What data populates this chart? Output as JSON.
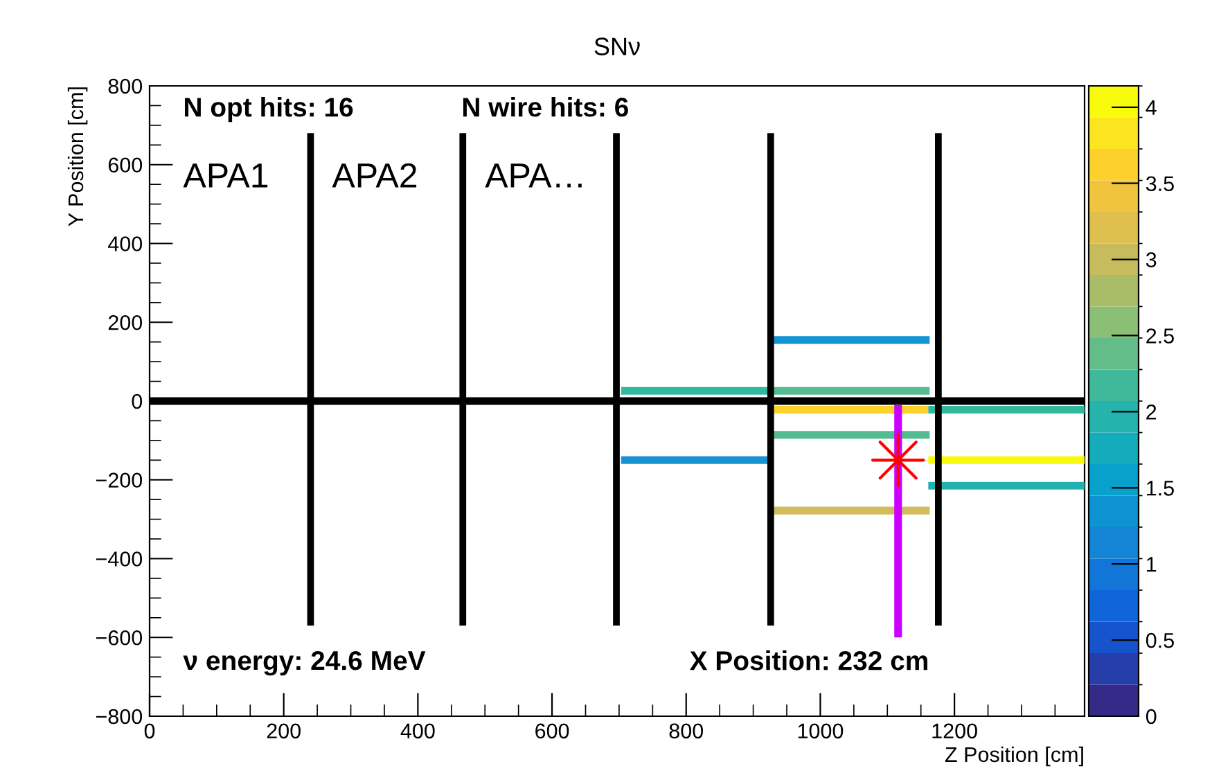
{
  "chart_data": {
    "type": "line",
    "title": "SNν",
    "xlabel": "Z Position [cm]",
    "ylabel": "Y Position [cm]",
    "xlim": [
      0,
      1394
    ],
    "xticks": [
      0,
      200,
      400,
      600,
      800,
      1000,
      1200
    ],
    "ylim": [
      -800,
      800
    ],
    "yticks": [
      {
        "value": -800,
        "label": "−800"
      },
      {
        "value": -600,
        "label": "−600"
      },
      {
        "value": -400,
        "label": "−400"
      },
      {
        "value": -200,
        "label": "−200"
      },
      0,
      200,
      400,
      600,
      800
    ],
    "clim": [
      0,
      4.14
    ],
    "cticks": [
      0,
      0.5,
      1,
      1.5,
      2,
      2.5,
      3,
      3.5,
      4
    ],
    "grid": false,
    "line_style": "solid",
    "series": [
      {
        "color": "#000000",
        "x": [
          240,
          240
        ],
        "values": [
          -570,
          680
        ]
      },
      {
        "color": "#000000",
        "x": [
          467,
          467
        ],
        "values": [
          -570,
          680
        ]
      },
      {
        "color": "#000000",
        "x": [
          696,
          696
        ],
        "values": [
          -570,
          680
        ]
      },
      {
        "color": "#000000",
        "x": [
          926,
          926
        ],
        "values": [
          -570,
          680
        ]
      },
      {
        "color": "#000000",
        "x": [
          1176,
          1176
        ],
        "values": [
          -570,
          680
        ]
      },
      {
        "color": "#33b8a0",
        "x": [
          703,
          926
        ],
        "values": [
          26,
          26
        ]
      },
      {
        "color": "#55bb90",
        "x": [
          930,
          1163
        ],
        "values": [
          26,
          26
        ]
      },
      {
        "color": "#1594d4",
        "x": [
          930,
          1163
        ],
        "values": [
          155,
          155
        ]
      },
      {
        "color": "#1594d4",
        "x": [
          703,
          926
        ],
        "values": [
          -150,
          -150
        ]
      },
      {
        "color": "#fdd32a",
        "x": [
          930,
          1161
        ],
        "values": [
          -22,
          -22
        ]
      },
      {
        "color": "#55bb90",
        "x": [
          930,
          1163
        ],
        "values": [
          -86,
          -86
        ]
      },
      {
        "color": "#d2bc5c",
        "x": [
          930,
          1163
        ],
        "values": [
          -278,
          -278
        ]
      },
      {
        "color": "#33b8a0",
        "x": [
          1161,
          1394
        ],
        "values": [
          -22,
          -22
        ]
      },
      {
        "color": "#f8fa0d",
        "x": [
          1161,
          1394
        ],
        "values": [
          -150,
          -150
        ]
      },
      {
        "color": "#22b0b0",
        "x": [
          1161,
          1394
        ],
        "values": [
          -215,
          -215
        ]
      },
      {
        "color": "#cc00ff",
        "x": [
          1116,
          1116
        ],
        "values": [
          -10,
          -600
        ]
      },
      {
        "type": "scatter",
        "marker": "star",
        "color": "#ff0000",
        "x": [
          1116
        ],
        "values": [
          -150
        ]
      }
    ],
    "ref_lines": [
      {
        "axis": "y",
        "value": 0,
        "color": "#000000"
      }
    ],
    "annotations": [
      "N opt hits: 16",
      "N wire hits: 6",
      "APA1",
      "APA2",
      "APA…",
      "ν energy: 24.6 MeV",
      "X Position: 232 cm"
    ]
  }
}
